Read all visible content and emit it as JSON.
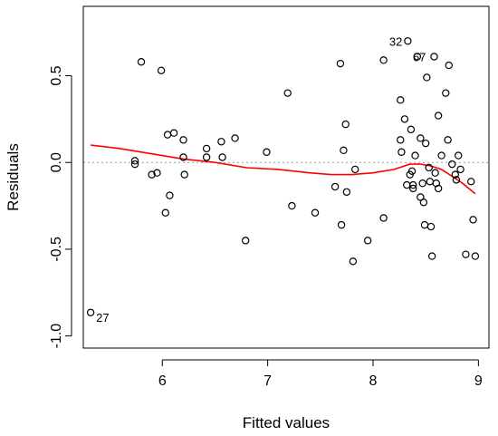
{
  "chart_data": {
    "type": "scatter",
    "title": "",
    "xlabel": "Fitted values",
    "ylabel": "Residuals",
    "xlim": [
      5.25,
      9.1
    ],
    "ylim": [
      -1.07,
      0.9
    ],
    "x_ticks": [
      6,
      7,
      8,
      9
    ],
    "y_ticks": [
      -1.0,
      -0.5,
      0.0,
      0.5
    ],
    "x_tick_labels": [
      "6",
      "7",
      "8",
      "9"
    ],
    "y_tick_labels": [
      "-1.0",
      "-0.5",
      "0.0",
      "0.5"
    ],
    "reference_line": {
      "y": 0,
      "style": "dotted",
      "color": "#999999"
    },
    "points": [
      {
        "x": 5.32,
        "y": -0.865,
        "label": "27"
      },
      {
        "x": 5.74,
        "y": 0.01
      },
      {
        "x": 5.74,
        "y": -0.01
      },
      {
        "x": 5.8,
        "y": 0.58
      },
      {
        "x": 5.9,
        "y": -0.07
      },
      {
        "x": 5.95,
        "y": -0.06
      },
      {
        "x": 5.99,
        "y": 0.53
      },
      {
        "x": 6.03,
        "y": -0.29
      },
      {
        "x": 6.05,
        "y": 0.16
      },
      {
        "x": 6.07,
        "y": -0.19
      },
      {
        "x": 6.11,
        "y": 0.17
      },
      {
        "x": 6.2,
        "y": 0.13
      },
      {
        "x": 6.2,
        "y": 0.03
      },
      {
        "x": 6.21,
        "y": -0.07
      },
      {
        "x": 6.42,
        "y": 0.08
      },
      {
        "x": 6.42,
        "y": 0.03
      },
      {
        "x": 6.56,
        "y": 0.12
      },
      {
        "x": 6.57,
        "y": 0.03
      },
      {
        "x": 6.69,
        "y": 0.14
      },
      {
        "x": 6.79,
        "y": -0.45
      },
      {
        "x": 6.99,
        "y": 0.06
      },
      {
        "x": 7.19,
        "y": 0.4
      },
      {
        "x": 7.23,
        "y": -0.25
      },
      {
        "x": 7.45,
        "y": -0.29
      },
      {
        "x": 7.64,
        "y": -0.14
      },
      {
        "x": 7.69,
        "y": 0.57
      },
      {
        "x": 7.7,
        "y": -0.36
      },
      {
        "x": 7.72,
        "y": 0.07
      },
      {
        "x": 7.74,
        "y": 0.22
      },
      {
        "x": 7.75,
        "y": -0.17
      },
      {
        "x": 7.81,
        "y": -0.57
      },
      {
        "x": 7.83,
        "y": -0.04
      },
      {
        "x": 7.95,
        "y": -0.45
      },
      {
        "x": 8.1,
        "y": 0.59
      },
      {
        "x": 8.1,
        "y": -0.32
      },
      {
        "x": 8.26,
        "y": 0.36
      },
      {
        "x": 8.26,
        "y": 0.13
      },
      {
        "x": 8.27,
        "y": 0.06
      },
      {
        "x": 8.3,
        "y": 0.25
      },
      {
        "x": 8.32,
        "y": -0.13
      },
      {
        "x": 8.33,
        "y": 0.7,
        "label": "32"
      },
      {
        "x": 8.35,
        "y": -0.07
      },
      {
        "x": 8.36,
        "y": 0.19
      },
      {
        "x": 8.37,
        "y": -0.05
      },
      {
        "x": 8.38,
        "y": -0.13
      },
      {
        "x": 8.38,
        "y": -0.15
      },
      {
        "x": 8.4,
        "y": 0.04
      },
      {
        "x": 8.42,
        "y": 0.61,
        "label": "67"
      },
      {
        "x": 8.45,
        "y": 0.14
      },
      {
        "x": 8.45,
        "y": -0.2
      },
      {
        "x": 8.47,
        "y": -0.12
      },
      {
        "x": 8.48,
        "y": -0.23
      },
      {
        "x": 8.49,
        "y": -0.36
      },
      {
        "x": 8.5,
        "y": 0.11
      },
      {
        "x": 8.51,
        "y": 0.49
      },
      {
        "x": 8.53,
        "y": -0.03
      },
      {
        "x": 8.54,
        "y": -0.11
      },
      {
        "x": 8.55,
        "y": -0.37
      },
      {
        "x": 8.56,
        "y": -0.54
      },
      {
        "x": 8.58,
        "y": 0.61
      },
      {
        "x": 8.59,
        "y": -0.06
      },
      {
        "x": 8.6,
        "y": -0.12
      },
      {
        "x": 8.62,
        "y": 0.27
      },
      {
        "x": 8.62,
        "y": -0.15
      },
      {
        "x": 8.65,
        "y": 0.04
      },
      {
        "x": 8.69,
        "y": 0.4
      },
      {
        "x": 8.71,
        "y": 0.13
      },
      {
        "x": 8.72,
        "y": 0.56
      },
      {
        "x": 8.75,
        "y": -0.01
      },
      {
        "x": 8.78,
        "y": -0.07
      },
      {
        "x": 8.79,
        "y": -0.1
      },
      {
        "x": 8.81,
        "y": 0.04
      },
      {
        "x": 8.83,
        "y": -0.04
      },
      {
        "x": 8.88,
        "y": -0.53
      },
      {
        "x": 8.93,
        "y": -0.11
      },
      {
        "x": 8.95,
        "y": -0.33
      },
      {
        "x": 8.97,
        "y": -0.54
      }
    ],
    "smooth_line": {
      "color": "#ff0000",
      "x": [
        5.32,
        5.6,
        5.9,
        6.2,
        6.5,
        6.8,
        7.1,
        7.4,
        7.6,
        7.8,
        8.0,
        8.2,
        8.35,
        8.45,
        8.55,
        8.65,
        8.75,
        8.85,
        8.97
      ],
      "y": [
        0.1,
        0.08,
        0.05,
        0.02,
        0.0,
        -0.03,
        -0.04,
        -0.06,
        -0.07,
        -0.07,
        -0.06,
        -0.04,
        -0.01,
        -0.01,
        -0.02,
        -0.04,
        -0.08,
        -0.12,
        -0.18
      ]
    },
    "grid": false,
    "legend": "none"
  }
}
